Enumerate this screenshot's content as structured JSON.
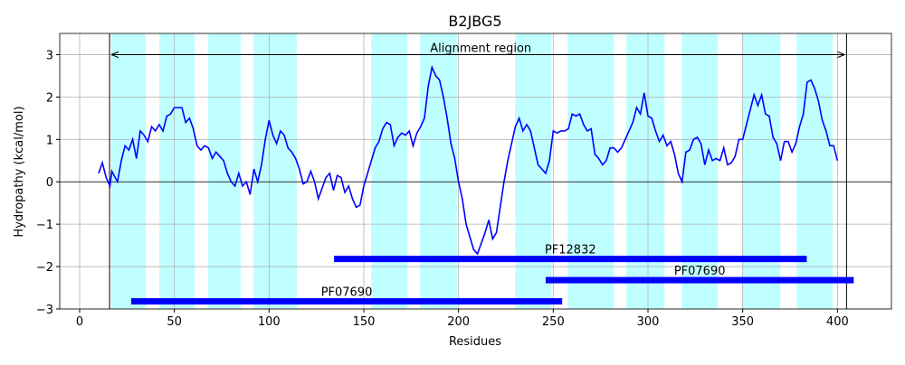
{
  "chart_data": {
    "type": "line",
    "title": "B2JBG5",
    "xlabel": "Residues",
    "ylabel": "Hydropathy (kcal/mol)",
    "xlim": [
      -10.5,
      428.5
    ],
    "ylim": [
      -3,
      3.5
    ],
    "xticks": [
      0,
      50,
      100,
      150,
      200,
      250,
      300,
      350,
      400
    ],
    "yticks": [
      {
        "value": -3,
        "label": "−3"
      },
      {
        "value": -2,
        "label": "−2"
      },
      {
        "value": -1,
        "label": "−1"
      },
      0,
      1,
      2,
      3
    ],
    "grid": true,
    "regions": [
      [
        16.7,
        34.9
      ],
      [
        42,
        60.7
      ],
      [
        67.9,
        85
      ],
      [
        91.8,
        114.7
      ],
      [
        153.9,
        173
      ],
      [
        179.7,
        199.3
      ],
      [
        229.9,
        249
      ],
      [
        257.6,
        282
      ],
      [
        288.6,
        308.7
      ],
      [
        317.8,
        336.9
      ],
      [
        349.8,
        369.9
      ],
      [
        378.5,
        397.6
      ]
    ],
    "region_color": "#c0ffff",
    "alignment": {
      "label": "Alignment region",
      "start": 15.8,
      "end": 404.8,
      "y": 3
    },
    "domains": [
      {
        "name": "PF12832",
        "start": 134.3,
        "end": 383.8,
        "y": -1.82
      },
      {
        "name": "PF07690",
        "start": 246,
        "end": 408.6,
        "y": -2.32
      },
      {
        "name": "PF07690",
        "start": 27.2,
        "end": 254.7,
        "y": -2.82
      }
    ],
    "domain_color": "#0000ff",
    "series": [
      {
        "color": "#0000ff",
        "x": [
          10,
          12,
          14,
          16,
          17,
          20,
          22,
          24,
          26,
          28,
          30,
          32,
          34,
          36,
          38,
          40,
          42,
          44,
          46,
          48,
          50,
          52,
          54,
          56,
          58,
          60,
          62,
          64,
          66,
          68,
          70,
          72,
          74,
          76,
          78,
          80,
          82,
          84,
          86,
          88,
          90,
          92,
          94,
          96,
          98,
          100,
          102,
          104,
          106,
          108,
          110,
          112,
          114,
          116,
          118,
          120,
          122,
          124,
          126,
          128,
          130,
          132,
          134,
          136,
          138,
          140,
          142,
          144,
          146,
          148,
          150,
          152,
          154,
          156,
          158,
          160,
          162,
          164,
          166,
          168,
          170,
          172,
          174,
          176,
          178,
          180,
          182,
          184,
          186,
          188,
          190,
          192,
          194,
          196,
          198,
          200,
          202,
          204,
          206,
          208,
          210,
          212,
          214,
          216,
          218,
          220,
          222,
          224,
          226,
          228,
          230,
          232,
          234,
          236,
          238,
          240,
          242,
          244,
          246,
          248,
          250,
          252,
          254,
          256,
          258,
          260,
          262,
          264,
          266,
          268,
          270,
          272,
          274,
          276,
          278,
          280,
          282,
          284,
          286,
          288,
          290,
          292,
          294,
          296,
          298,
          300,
          302,
          304,
          306,
          308,
          310,
          312,
          314,
          316,
          318,
          320,
          322,
          324,
          326,
          328,
          330,
          332,
          334,
          336,
          338,
          340,
          342,
          344,
          346,
          348,
          350,
          352,
          354,
          356,
          358,
          360,
          362,
          364,
          366,
          368,
          370,
          372,
          374,
          376,
          378,
          380,
          382,
          384,
          386,
          388,
          390,
          392,
          394,
          396,
          398,
          400
        ],
        "values": [
          0.2,
          0.45,
          0.1,
          -0.1,
          0.25,
          0.0,
          0.5,
          0.85,
          0.75,
          1.0,
          0.55,
          1.2,
          1.1,
          0.95,
          1.3,
          1.2,
          1.35,
          1.2,
          1.55,
          1.6,
          1.75,
          1.75,
          1.75,
          1.4,
          1.5,
          1.25,
          0.85,
          0.75,
          0.85,
          0.8,
          0.55,
          0.7,
          0.6,
          0.5,
          0.2,
          0.0,
          -0.1,
          0.2,
          -0.1,
          0.0,
          -0.3,
          0.3,
          0.0,
          0.4,
          1.0,
          1.45,
          1.1,
          0.9,
          1.2,
          1.1,
          0.8,
          0.7,
          0.55,
          0.3,
          -0.05,
          0.0,
          0.25,
          0.0,
          -0.4,
          -0.15,
          0.1,
          0.2,
          -0.2,
          0.15,
          0.1,
          -0.25,
          -0.1,
          -0.4,
          -0.6,
          -0.55,
          -0.1,
          0.2,
          0.5,
          0.8,
          0.95,
          1.25,
          1.4,
          1.35,
          0.85,
          1.05,
          1.15,
          1.1,
          1.2,
          0.85,
          1.15,
          1.3,
          1.5,
          2.25,
          2.7,
          2.5,
          2.4,
          2.0,
          1.5,
          0.9,
          0.55,
          0.0,
          -0.4,
          -1.0,
          -1.3,
          -1.6,
          -1.7,
          -1.45,
          -1.2,
          -0.9,
          -1.35,
          -1.2,
          -0.6,
          0.0,
          0.5,
          0.9,
          1.3,
          1.5,
          1.2,
          1.35,
          1.2,
          0.8,
          0.4,
          0.3,
          0.2,
          0.5,
          1.2,
          1.15,
          1.2,
          1.2,
          1.25,
          1.6,
          1.55,
          1.6,
          1.35,
          1.2,
          1.25,
          0.65,
          0.55,
          0.4,
          0.5,
          0.8,
          0.8,
          0.7,
          0.8,
          1.0,
          1.2,
          1.4,
          1.75,
          1.6,
          2.1,
          1.55,
          1.5,
          1.2,
          0.95,
          1.1,
          0.85,
          0.95,
          0.65,
          0.2,
          0.0,
          0.7,
          0.75,
          1.0,
          1.05,
          0.9,
          0.4,
          0.75,
          0.5,
          0.55,
          0.5,
          0.8,
          0.4,
          0.45,
          0.6,
          1.0,
          1.0,
          1.35,
          1.7,
          2.05,
          1.8,
          2.05,
          1.6,
          1.55,
          1.05,
          0.9,
          0.5,
          0.95,
          0.95,
          0.7,
          0.9,
          1.3,
          1.6,
          2.35,
          2.4,
          2.2,
          1.9,
          1.45,
          1.2,
          0.85,
          0.85,
          0.5
        ]
      }
    ]
  }
}
